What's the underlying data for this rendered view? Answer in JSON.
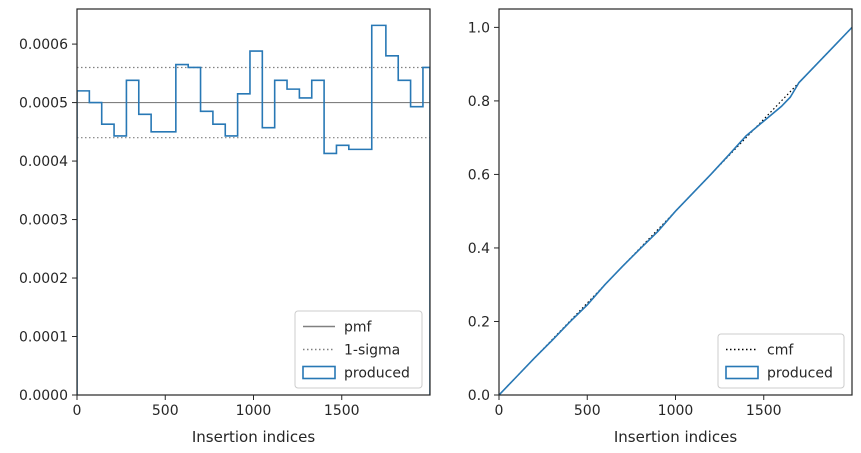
{
  "chart_data": [
    {
      "type": "line",
      "step": true,
      "xlabel": "Insertion indices",
      "ylabel": "",
      "title": "",
      "xlim": [
        0,
        2000
      ],
      "ylim": [
        0,
        0.00066
      ],
      "xticks": [
        0,
        500,
        1000,
        1500
      ],
      "xtick_labels": [
        "0",
        "500",
        "1000",
        "1500"
      ],
      "yticks": [
        0,
        0.0001,
        0.0002,
        0.0003,
        0.0004,
        0.0005,
        0.0006
      ],
      "ytick_labels": [
        "0.0000",
        "0.0001",
        "0.0002",
        "0.0003",
        "0.0004",
        "0.0005",
        "0.0006"
      ],
      "grid": false,
      "legend": {
        "location": "lower right",
        "entries": [
          "pmf",
          "1-sigma",
          "produced"
        ]
      },
      "series": [
        {
          "name": "pmf",
          "style": "solid",
          "color": "#808080",
          "x": [
            0,
            2000
          ],
          "y": [
            0.0005,
            0.0005
          ]
        },
        {
          "name": "1-sigma",
          "style": "dotted",
          "color": "#808080",
          "x": [
            0,
            2000
          ],
          "y": [
            0.00056,
            0.00056
          ]
        },
        {
          "name": "1-sigma",
          "style": "dotted",
          "color": "#808080",
          "x": [
            0,
            2000
          ],
          "y": [
            0.00044,
            0.00044
          ]
        },
        {
          "name": "produced",
          "style": "step",
          "color": "#2878b5",
          "bin_edges": [
            0,
            70,
            140,
            210,
            280,
            350,
            420,
            560,
            630,
            700,
            770,
            840,
            910,
            980,
            1050,
            1120,
            1190,
            1260,
            1330,
            1400,
            1470,
            1540,
            1670,
            1750,
            1820,
            1890,
            1960,
            2000
          ],
          "values": [
            0.00052,
            0.0005,
            0.000463,
            0.000443,
            0.000538,
            0.00048,
            0.00045,
            0.000565,
            0.00056,
            0.000485,
            0.000463,
            0.000443,
            0.000515,
            0.000588,
            0.000457,
            0.000538,
            0.000523,
            0.000508,
            0.000538,
            0.000413,
            0.000427,
            0.00042,
            0.000632,
            0.00058,
            0.000538,
            0.000493,
            0.00056
          ]
        }
      ]
    },
    {
      "type": "line",
      "xlabel": "Insertion indices",
      "ylabel": "",
      "title": "",
      "xlim": [
        0,
        2000
      ],
      "ylim": [
        0,
        1.05
      ],
      "xticks": [
        0,
        500,
        1000,
        1500
      ],
      "xtick_labels": [
        "0",
        "500",
        "1000",
        "1500"
      ],
      "yticks": [
        0.0,
        0.2,
        0.4,
        0.6,
        0.8,
        1.0
      ],
      "ytick_labels": [
        "0.0",
        "0.2",
        "0.4",
        "0.6",
        "0.8",
        "1.0"
      ],
      "grid": false,
      "legend": {
        "location": "lower right",
        "entries": [
          "cmf",
          "produced"
        ]
      },
      "series": [
        {
          "name": "cmf",
          "style": "dotted",
          "color": "#000000",
          "x": [
            0,
            2000
          ],
          "y": [
            0,
            1
          ]
        },
        {
          "name": "produced",
          "style": "solid",
          "color": "#2878b5",
          "x": [
            0,
            100,
            200,
            300,
            400,
            500,
            600,
            700,
            800,
            900,
            1000,
            1100,
            1200,
            1300,
            1400,
            1500,
            1600,
            1650,
            1700,
            1800,
            1900,
            2000
          ],
          "y": [
            0,
            0.05,
            0.1,
            0.148,
            0.198,
            0.245,
            0.3,
            0.35,
            0.398,
            0.445,
            0.5,
            0.55,
            0.6,
            0.652,
            0.705,
            0.745,
            0.785,
            0.81,
            0.85,
            0.9,
            0.95,
            1.0
          ]
        }
      ]
    }
  ]
}
